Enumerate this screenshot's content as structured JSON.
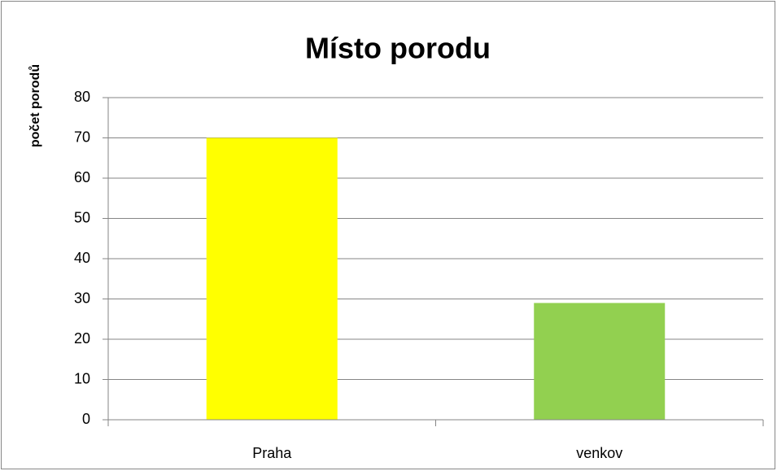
{
  "chart_data": {
    "type": "bar",
    "title": "Místo porodu",
    "y_label": "počet porodů",
    "categories": [
      "Praha",
      "venkov"
    ],
    "values": [
      70,
      29
    ],
    "colors": [
      "#ffff00",
      "#92d050"
    ],
    "ylim": [
      0,
      80
    ],
    "yticks": [
      0,
      10,
      20,
      30,
      40,
      50,
      60,
      70,
      80
    ],
    "grid": true
  }
}
